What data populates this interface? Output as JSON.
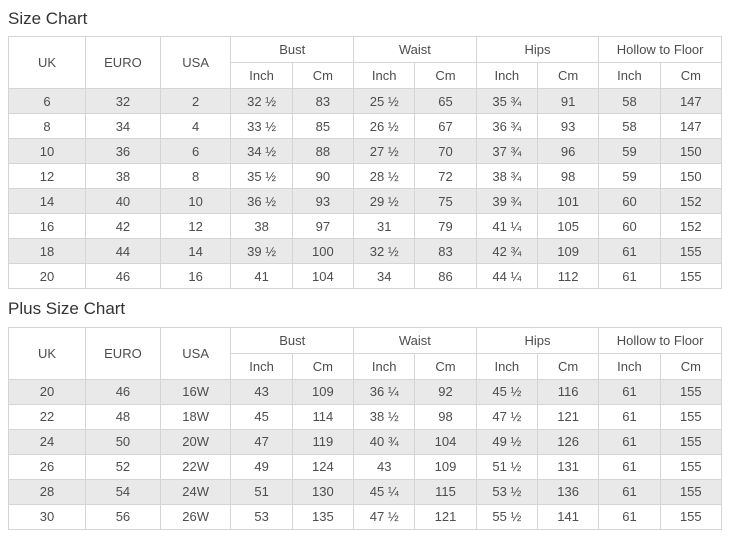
{
  "styles": {
    "background": "#ffffff",
    "text_color": "#4d4d4d",
    "title_color": "#333333",
    "border_color": "#d5d5d5",
    "stripe_color": "#e9e9e9"
  },
  "column_groups": {
    "simple": [
      "UK",
      "EURO",
      "USA"
    ],
    "measures": [
      {
        "label": "Bust",
        "sub": [
          "Inch",
          "Cm"
        ]
      },
      {
        "label": "Waist",
        "sub": [
          "Inch",
          "Cm"
        ]
      },
      {
        "label": "Hips",
        "sub": [
          "Inch",
          "Cm"
        ]
      },
      {
        "label": "Hollow to Floor",
        "sub": [
          "Inch",
          "Cm"
        ]
      }
    ]
  },
  "tables": [
    {
      "title": "Size Chart",
      "rows": [
        [
          "6",
          "32",
          "2",
          "32 ½",
          "83",
          "25 ½",
          "65",
          "35 ¾",
          "91",
          "58",
          "147"
        ],
        [
          "8",
          "34",
          "4",
          "33 ½",
          "85",
          "26 ½",
          "67",
          "36 ¾",
          "93",
          "58",
          "147"
        ],
        [
          "10",
          "36",
          "6",
          "34 ½",
          "88",
          "27 ½",
          "70",
          "37 ¾",
          "96",
          "59",
          "150"
        ],
        [
          "12",
          "38",
          "8",
          "35 ½",
          "90",
          "28 ½",
          "72",
          "38 ¾",
          "98",
          "59",
          "150"
        ],
        [
          "14",
          "40",
          "10",
          "36 ½",
          "93",
          "29 ½",
          "75",
          "39 ¾",
          "101",
          "60",
          "152"
        ],
        [
          "16",
          "42",
          "12",
          "38",
          "97",
          "31",
          "79",
          "41 ¼",
          "105",
          "60",
          "152"
        ],
        [
          "18",
          "44",
          "14",
          "39 ½",
          "100",
          "32 ½",
          "83",
          "42 ¾",
          "109",
          "61",
          "155"
        ],
        [
          "20",
          "46",
          "16",
          "41",
          "104",
          "34",
          "86",
          "44 ¼",
          "112",
          "61",
          "155"
        ]
      ]
    },
    {
      "title": "Plus Size Chart",
      "rows": [
        [
          "20",
          "46",
          "16W",
          "43",
          "109",
          "36 ¼",
          "92",
          "45 ½",
          "116",
          "61",
          "155"
        ],
        [
          "22",
          "48",
          "18W",
          "45",
          "114",
          "38 ½",
          "98",
          "47 ½",
          "121",
          "61",
          "155"
        ],
        [
          "24",
          "50",
          "20W",
          "47",
          "119",
          "40 ¾",
          "104",
          "49 ½",
          "126",
          "61",
          "155"
        ],
        [
          "26",
          "52",
          "22W",
          "49",
          "124",
          "43",
          "109",
          "51 ½",
          "131",
          "61",
          "155"
        ],
        [
          "28",
          "54",
          "24W",
          "51",
          "130",
          "45 ¼",
          "115",
          "53 ½",
          "136",
          "61",
          "155"
        ],
        [
          "30",
          "56",
          "26W",
          "53",
          "135",
          "47 ½",
          "121",
          "55 ½",
          "141",
          "61",
          "155"
        ]
      ]
    }
  ]
}
